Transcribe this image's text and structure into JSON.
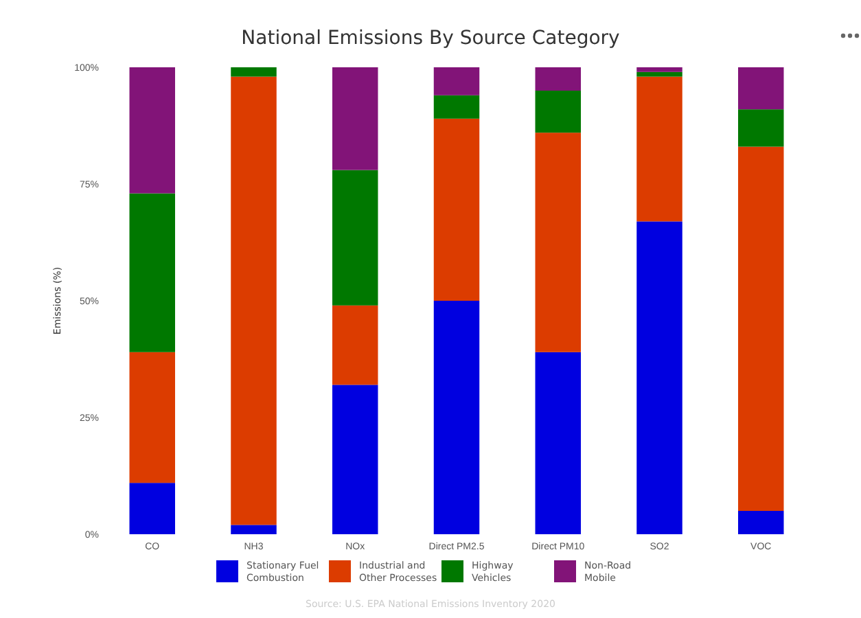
{
  "chart_data": {
    "type": "bar",
    "title": "National Emissions By Source Category",
    "ylabel": "Emissions (%)",
    "categories": [
      "CO",
      "NH3",
      "NOx",
      "Direct PM2.5",
      "Direct PM10",
      "SO2",
      "VOC"
    ],
    "stacked": true,
    "series": [
      {
        "name": "Stationary Fuel Combustion",
        "color": "#0000e0",
        "values": [
          11,
          2,
          32,
          50,
          39,
          67,
          5
        ]
      },
      {
        "name": "Industrial and Other Processes",
        "color": "#dc3c00",
        "values": [
          28,
          96,
          17,
          39,
          47,
          31,
          78
        ]
      },
      {
        "name": "Highway Vehicles",
        "color": "#007800",
        "values": [
          34,
          2,
          29,
          5,
          9,
          1,
          8
        ]
      },
      {
        "name": "Non-Road Mobile",
        "color": "#821478",
        "values": [
          27,
          0,
          22,
          6,
          5,
          1,
          9
        ]
      }
    ],
    "ylim": [
      0,
      100
    ],
    "yticks": [
      {
        "value": 0,
        "label": "0%"
      },
      {
        "value": 25,
        "label": "25%"
      },
      {
        "value": 50,
        "label": "50%"
      },
      {
        "value": 75,
        "label": "75%"
      },
      {
        "value": 100,
        "label": "100%"
      }
    ],
    "grid": false,
    "legend": "bottom",
    "annotations": [
      "Source: U.S. EPA National Emissions Inventory 2020"
    ]
  }
}
